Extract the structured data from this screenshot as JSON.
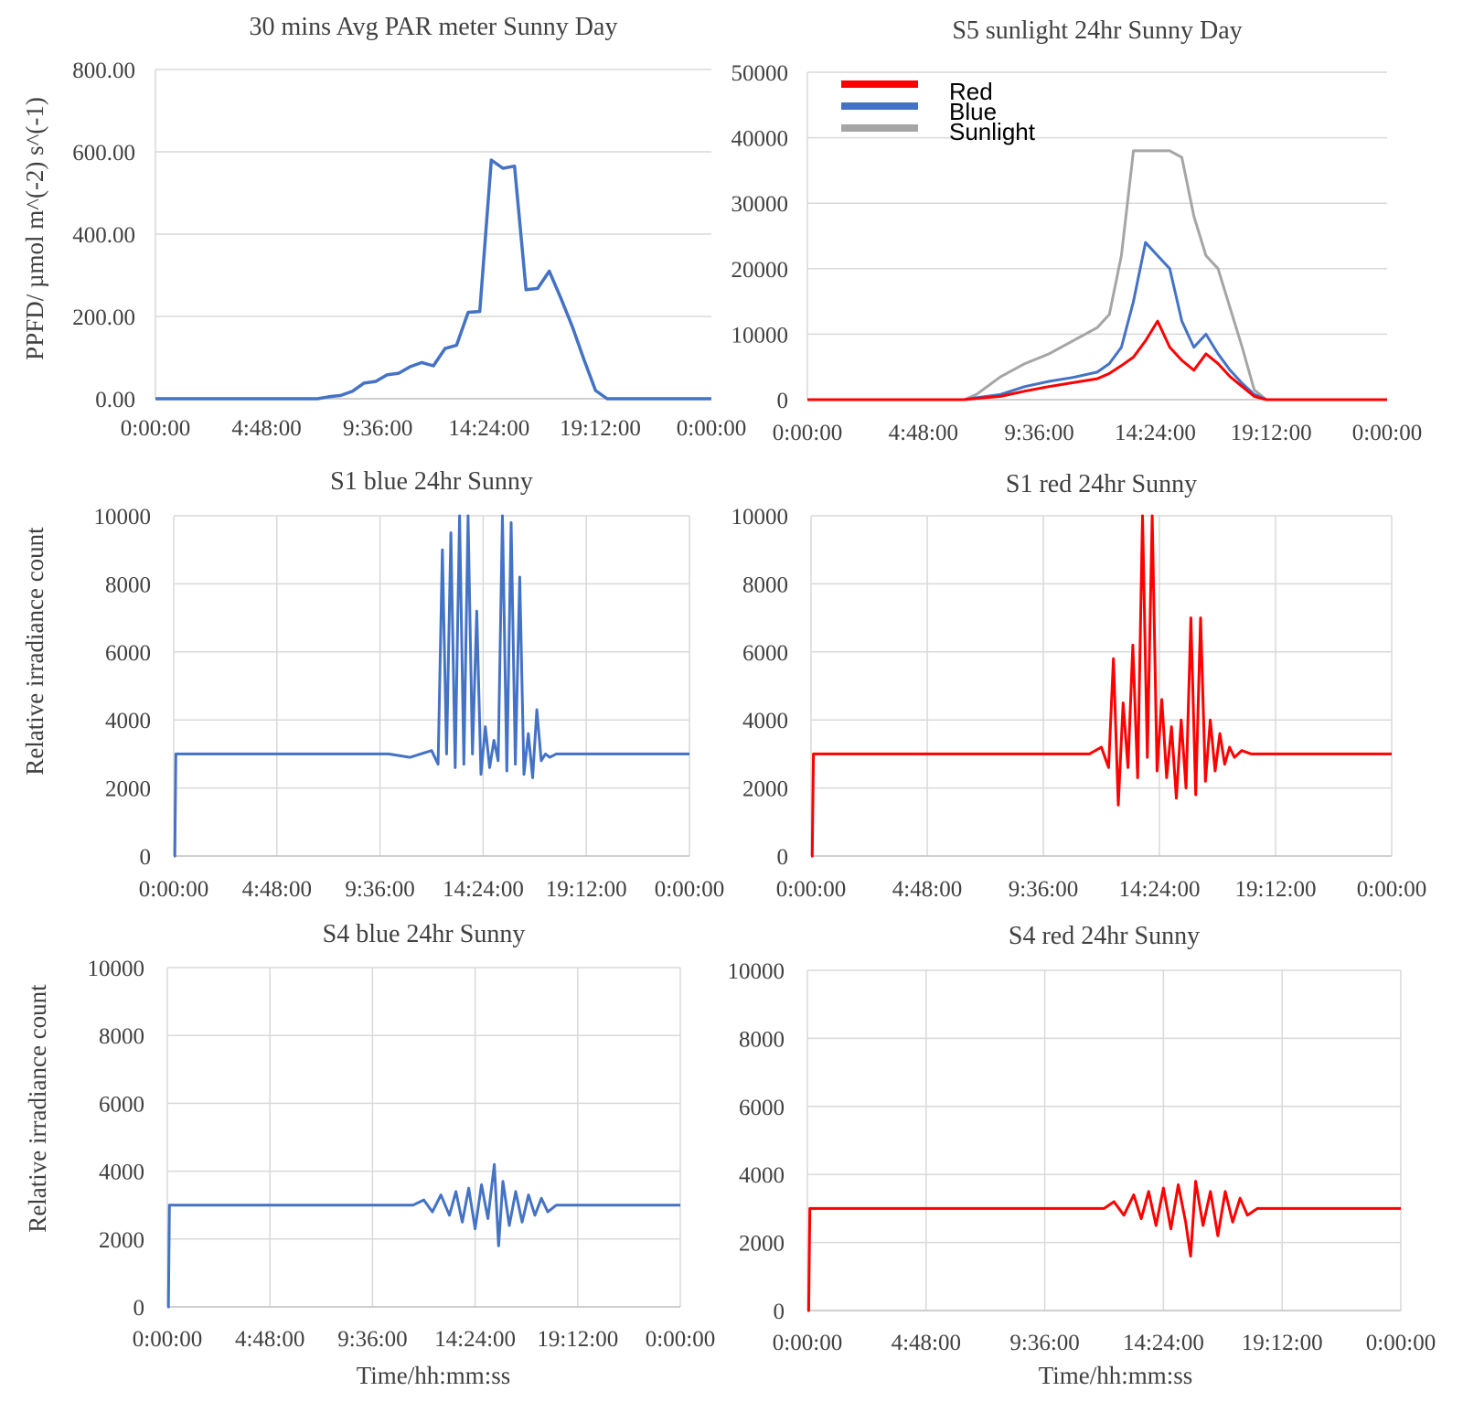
{
  "figure": {
    "y_label_ppfd": "PPFD/ µmol m^(-2) s^(-1)",
    "y_label_irr": "Relative irradiance count",
    "x_label": "Time/hh:mm:ss"
  },
  "chart_data": [
    {
      "id": "par",
      "type": "line",
      "title": "30 mins Avg PAR meter Sunny Day",
      "ylabel": "PPFD/ µmol m^(-2) s^(-1)",
      "xlabel": "",
      "x_unit": "hours",
      "xlim": [
        0,
        24
      ],
      "ylim": [
        0,
        800
      ],
      "x_ticks": [
        "0:00:00",
        "4:48:00",
        "9:36:00",
        "14:24:00",
        "19:12:00",
        "0:00:00"
      ],
      "y_ticks": [
        "0.00",
        "200.00",
        "400.00",
        "600.00",
        "800.00"
      ],
      "grid": "horizontal",
      "series": [
        {
          "color": "#4472C4",
          "x": [
            0,
            7.0,
            7.5,
            8.0,
            8.5,
            9.0,
            9.5,
            10.0,
            10.5,
            11.0,
            11.5,
            12.0,
            12.5,
            13.0,
            13.5,
            14.0,
            14.5,
            15.0,
            15.5,
            16.0,
            16.5,
            17.0,
            17.5,
            18.0,
            18.5,
            19.0,
            19.5,
            20.0,
            24
          ],
          "y": [
            0,
            0,
            5,
            8,
            18,
            38,
            42,
            58,
            62,
            78,
            88,
            80,
            122,
            130,
            210,
            212,
            580,
            560,
            565,
            265,
            268,
            310,
            245,
            175,
            95,
            20,
            0,
            0,
            0
          ]
        }
      ]
    },
    {
      "id": "s5",
      "type": "line",
      "title": "S5 sunlight 24hr Sunny Day",
      "xlabel": "",
      "ylabel": "",
      "x_unit": "hours",
      "xlim": [
        0,
        24
      ],
      "ylim": [
        0,
        50000
      ],
      "x_ticks": [
        "0:00:00",
        "4:48:00",
        "9:36:00",
        "14:24:00",
        "19:12:00",
        "0:00:00"
      ],
      "y_ticks": [
        "0",
        "10000",
        "20000",
        "30000",
        "40000",
        "50000"
      ],
      "grid": "horizontal",
      "legend": [
        "Red",
        "Blue",
        "Sunlight"
      ],
      "legend_position": "top-left",
      "series": [
        {
          "name": "Red",
          "color": "#FF0000",
          "x": [
            0,
            6.5,
            7.0,
            8.0,
            9.0,
            10.0,
            11.0,
            12.0,
            12.5,
            13.0,
            13.5,
            14.0,
            14.5,
            15.0,
            15.5,
            16.0,
            16.5,
            17.0,
            17.5,
            18.0,
            18.5,
            19.0,
            24
          ],
          "y": [
            0,
            0,
            200,
            500,
            1300,
            2000,
            2600,
            3200,
            4000,
            5200,
            6500,
            9000,
            12000,
            8000,
            6000,
            4500,
            7000,
            5500,
            3500,
            2000,
            500,
            0,
            0
          ]
        },
        {
          "name": "Blue",
          "color": "#4472C4",
          "x": [
            0,
            6.5,
            7.0,
            8.0,
            9.0,
            10.0,
            11.0,
            12.0,
            12.5,
            13.0,
            13.5,
            14.0,
            14.5,
            15.0,
            15.5,
            16.0,
            16.5,
            17.0,
            17.5,
            18.0,
            18.5,
            19.0,
            24
          ],
          "y": [
            0,
            0,
            300,
            800,
            2000,
            2800,
            3400,
            4200,
            5500,
            8000,
            15000,
            24000,
            22000,
            20000,
            12000,
            8000,
            10000,
            7000,
            4500,
            2500,
            800,
            0,
            0
          ]
        },
        {
          "name": "Sunlight",
          "color": "#A5A5A5",
          "x": [
            0,
            6.5,
            7.0,
            8.0,
            9.0,
            10.0,
            11.0,
            12.0,
            12.5,
            13.0,
            13.5,
            14.0,
            14.5,
            15.0,
            15.5,
            16.0,
            16.5,
            17.0,
            17.5,
            18.0,
            18.5,
            19.0,
            24
          ],
          "y": [
            0,
            0,
            800,
            3500,
            5500,
            7000,
            9000,
            11000,
            13000,
            22000,
            38000,
            38000,
            38000,
            38000,
            37000,
            28000,
            22000,
            20000,
            14000,
            8000,
            1500,
            0,
            0
          ]
        }
      ]
    },
    {
      "id": "s1b",
      "type": "line",
      "title": "S1 blue 24hr Sunny",
      "ylabel": "Relative irradiance count",
      "xlabel": "",
      "x_unit": "hours",
      "xlim": [
        0,
        24
      ],
      "ylim": [
        0,
        10000
      ],
      "x_ticks": [
        "0:00:00",
        "4:48:00",
        "9:36:00",
        "14:24:00",
        "19:12:00",
        "0:00:00"
      ],
      "y_ticks": [
        "0",
        "2000",
        "4000",
        "6000",
        "8000",
        "10000"
      ],
      "grid": "both",
      "series": [
        {
          "color": "#4472C4",
          "x": [
            0.0,
            0.05,
            0.1,
            5.0,
            10.0,
            11.0,
            12.0,
            12.3,
            12.5,
            12.7,
            12.9,
            13.1,
            13.3,
            13.5,
            13.7,
            13.9,
            14.1,
            14.3,
            14.5,
            14.7,
            14.9,
            15.1,
            15.3,
            15.5,
            15.7,
            15.9,
            16.1,
            16.3,
            16.5,
            16.7,
            16.9,
            17.1,
            17.3,
            17.5,
            17.8,
            18.0,
            20.0,
            24.0
          ],
          "y": [
            0,
            0,
            3000,
            3000,
            3000,
            2900,
            3100,
            2700,
            9000,
            3000,
            9500,
            2600,
            10000,
            2700,
            10000,
            3000,
            7200,
            2400,
            3800,
            2600,
            3400,
            2800,
            10000,
            2500,
            9800,
            2700,
            8200,
            2400,
            3600,
            2300,
            4300,
            2800,
            3000,
            2900,
            3000,
            3000,
            3000,
            3000
          ]
        }
      ]
    },
    {
      "id": "s1r",
      "type": "line",
      "title": "S1 red 24hr Sunny",
      "ylabel": "",
      "xlabel": "",
      "x_unit": "hours",
      "xlim": [
        0,
        24
      ],
      "ylim": [
        0,
        10000
      ],
      "x_ticks": [
        "0:00:00",
        "4:48:00",
        "9:36:00",
        "14:24:00",
        "19:12:00",
        "0:00:00"
      ],
      "y_ticks": [
        "0",
        "2000",
        "4000",
        "6000",
        "8000",
        "10000"
      ],
      "grid": "both",
      "series": [
        {
          "color": "#FF0000",
          "x": [
            0.0,
            0.05,
            0.1,
            5.0,
            10.0,
            11.5,
            12.0,
            12.3,
            12.5,
            12.7,
            12.9,
            13.1,
            13.3,
            13.5,
            13.7,
            13.9,
            14.1,
            14.3,
            14.5,
            14.7,
            14.9,
            15.1,
            15.3,
            15.5,
            15.7,
            15.9,
            16.1,
            16.3,
            16.5,
            16.7,
            16.9,
            17.1,
            17.3,
            17.5,
            17.8,
            18.2,
            20.0,
            24.0
          ],
          "y": [
            0,
            0,
            3000,
            3000,
            3000,
            3000,
            3200,
            2600,
            5800,
            1500,
            4500,
            2600,
            6200,
            2300,
            10000,
            2900,
            10000,
            2500,
            4600,
            2300,
            3800,
            1700,
            4000,
            2000,
            7000,
            1800,
            7000,
            2200,
            4000,
            2500,
            3600,
            2700,
            3200,
            2900,
            3100,
            3000,
            3000,
            3000
          ]
        }
      ]
    },
    {
      "id": "s4b",
      "type": "line",
      "title": "S4 blue 24hr Sunny",
      "ylabel": "Relative irradiance count",
      "xlabel": "Time/hh:mm:ss",
      "x_unit": "hours",
      "xlim": [
        0,
        24
      ],
      "ylim": [
        0,
        10000
      ],
      "x_ticks": [
        "0:00:00",
        "4:48:00",
        "9:36:00",
        "14:24:00",
        "19:12:00",
        "0:00:00"
      ],
      "y_ticks": [
        "0",
        "2000",
        "4000",
        "6000",
        "8000",
        "10000"
      ],
      "grid": "both",
      "series": [
        {
          "color": "#4472C4",
          "x": [
            0.0,
            0.05,
            0.1,
            5.0,
            10.0,
            11.5,
            12.0,
            12.4,
            12.8,
            13.2,
            13.5,
            13.8,
            14.1,
            14.4,
            14.7,
            15.0,
            15.3,
            15.5,
            15.7,
            16.0,
            16.3,
            16.6,
            16.9,
            17.2,
            17.5,
            17.8,
            18.2,
            20.0,
            24.0
          ],
          "y": [
            0,
            0,
            3000,
            3000,
            3000,
            3000,
            3150,
            2800,
            3300,
            2700,
            3400,
            2500,
            3500,
            2300,
            3600,
            2600,
            4200,
            1800,
            3700,
            2400,
            3400,
            2500,
            3300,
            2700,
            3200,
            2800,
            3000,
            3000,
            3000
          ]
        }
      ]
    },
    {
      "id": "s4r",
      "type": "line",
      "title": "S4 red 24hr Sunny",
      "ylabel": "",
      "xlabel": "Time/hh:mm:ss",
      "x_unit": "hours",
      "xlim": [
        0,
        24
      ],
      "ylim": [
        0,
        10000
      ],
      "x_ticks": [
        "0:00:00",
        "4:48:00",
        "9:36:00",
        "14:24:00",
        "19:12:00",
        "0:00:00"
      ],
      "y_ticks": [
        "0",
        "2000",
        "4000",
        "6000",
        "8000",
        "10000"
      ],
      "grid": "both",
      "series": [
        {
          "color": "#FF0000",
          "x": [
            0.0,
            0.05,
            0.1,
            5.0,
            10.0,
            12.0,
            12.4,
            12.8,
            13.2,
            13.5,
            13.8,
            14.1,
            14.4,
            14.7,
            15.0,
            15.3,
            15.5,
            15.7,
            16.0,
            16.3,
            16.6,
            16.9,
            17.2,
            17.5,
            17.8,
            18.2,
            20.0,
            24.0
          ],
          "y": [
            0,
            0,
            3000,
            3000,
            3000,
            3000,
            3200,
            2800,
            3400,
            2700,
            3500,
            2500,
            3600,
            2400,
            3700,
            2600,
            1600,
            3800,
            2500,
            3500,
            2200,
            3500,
            2600,
            3300,
            2800,
            3000,
            3000,
            3000
          ]
        }
      ]
    }
  ]
}
